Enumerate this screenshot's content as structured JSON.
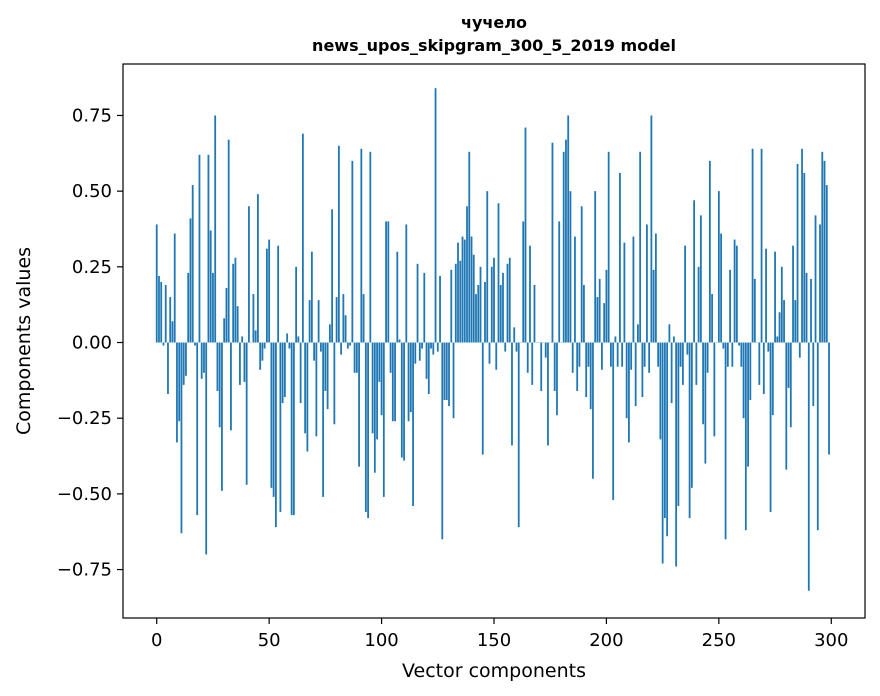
{
  "chart_data": {
    "type": "bar",
    "title": "чучело",
    "subtitle": "news_upos_skipgram_300_5_2019 model",
    "xlabel": "Vector components",
    "ylabel": "Components values",
    "xlim": [
      -15,
      315
    ],
    "ylim": [
      -0.91,
      0.92
    ],
    "xticks": [
      0,
      50,
      100,
      150,
      200,
      250,
      300
    ],
    "xtick_labels": [
      "0",
      "50",
      "100",
      "150",
      "200",
      "250",
      "300"
    ],
    "yticks": [
      -0.75,
      -0.5,
      -0.25,
      0.0,
      0.25,
      0.5,
      0.75
    ],
    "ytick_labels": [
      "−0.75",
      "−0.50",
      "−0.25",
      "0.00",
      "0.25",
      "0.50",
      "0.75"
    ],
    "grid": false,
    "bar_color": "#1f77b4",
    "values": [
      0.39,
      0.22,
      0.2,
      -0.01,
      0.19,
      -0.17,
      0.15,
      0.07,
      0.36,
      -0.33,
      -0.26,
      -0.63,
      -0.14,
      -0.11,
      0.23,
      0.41,
      0.52,
      -0.01,
      -0.57,
      0.62,
      -0.12,
      -0.1,
      -0.7,
      0.62,
      0.37,
      0.23,
      0.75,
      -0.16,
      -0.28,
      -0.49,
      0.08,
      0.18,
      0.67,
      -0.29,
      0.26,
      0.28,
      0.12,
      -0.14,
      0.02,
      -0.13,
      -0.47,
      0.45,
      0.0,
      0.16,
      0.04,
      0.49,
      -0.09,
      -0.06,
      -0.02,
      0.31,
      0.34,
      -0.48,
      -0.51,
      -0.61,
      0.32,
      -0.56,
      -0.2,
      -0.18,
      0.03,
      -0.02,
      -0.57,
      -0.57,
      0.25,
      0.02,
      -0.2,
      0.69,
      -0.3,
      -0.36,
      0.14,
      0.3,
      -0.06,
      -0.31,
      0.14,
      -0.03,
      -0.51,
      -0.16,
      -0.22,
      0.06,
      0.44,
      -0.27,
      0.15,
      0.65,
      -0.04,
      0.16,
      0.09,
      -0.02,
      -0.01,
      0.6,
      -0.1,
      -0.1,
      -0.41,
      0.64,
      0.16,
      -0.56,
      -0.58,
      0.63,
      -0.3,
      -0.43,
      -0.32,
      -0.13,
      -0.24,
      -0.51,
      0.4,
      0.4,
      -0.1,
      -0.26,
      -0.26,
      0.3,
      0.01,
      -0.38,
      -0.39,
      0.39,
      -0.26,
      -0.23,
      -0.54,
      -0.07,
      0.26,
      -0.06,
      -0.02,
      0.23,
      -0.12,
      -0.17,
      -0.02,
      -0.04,
      0.84,
      -0.03,
      0.22,
      -0.65,
      -0.19,
      -0.19,
      -0.21,
      0.24,
      -0.25,
      0.26,
      0.33,
      0.27,
      0.35,
      0.34,
      0.45,
      0.63,
      0.35,
      0.29,
      0.16,
      0.19,
      0.25,
      -0.37,
      0.2,
      0.5,
      -0.07,
      0.25,
      0.28,
      -0.09,
      0.46,
      0.19,
      0.23,
      -0.03,
      0.26,
      0.28,
      -0.34,
      0.05,
      -0.03,
      -0.61,
      0.0,
      0.4,
      0.71,
      -0.1,
      0.32,
      -0.14,
      0.19,
      0.0,
      0.0,
      -0.16,
      0.0,
      -0.05,
      -0.34,
      0.0,
      0.66,
      -0.16,
      -0.24,
      0.4,
      0.0,
      0.63,
      0.67,
      0.75,
      0.5,
      -0.1,
      0.35,
      -0.16,
      -0.08,
      0.45,
      0.19,
      -0.18,
      -0.08,
      -0.22,
      -0.45,
      0.5,
      0.15,
      0.21,
      -0.09,
      0.13,
      0.24,
      0.63,
      -0.08,
      -0.52,
      0.02,
      -0.08,
      0.56,
      -0.08,
      0.33,
      -0.25,
      -0.33,
      -0.09,
      0.35,
      -0.21,
      0.06,
      0.63,
      -0.18,
      -0.08,
      0.39,
      -0.1,
      0.75,
      0.24,
      0.36,
      -0.08,
      -0.32,
      -0.73,
      -0.58,
      -0.64,
      0.06,
      -0.2,
      0.02,
      -0.74,
      -0.54,
      -0.08,
      -0.14,
      0.32,
      -0.04,
      -0.58,
      -0.48,
      0.47,
      -0.14,
      0.25,
      0.42,
      -0.27,
      -0.4,
      -0.1,
      0.6,
      0.16,
      -0.31,
      0.0,
      0.5,
      0.36,
      -0.02,
      -0.65,
      -0.08,
      0.24,
      -0.08,
      0.34,
      0.32,
      -0.01,
      -0.08,
      -0.25,
      -0.62,
      -0.41,
      -0.19,
      0.64,
      0.21,
      0.0,
      -0.14,
      0.64,
      -0.17,
      0.31,
      -0.03,
      -0.56,
      -0.24,
      0.3,
      0.02,
      0.1,
      0.25,
      0.14,
      -0.42,
      -0.15,
      -0.28,
      0.32,
      0.14,
      0.59,
      -0.05,
      0.64,
      0.56,
      0.23,
      -0.82,
      0.21,
      -0.21,
      0.42,
      -0.62,
      0.39,
      0.63,
      0.6,
      0.52,
      -0.37
    ]
  }
}
